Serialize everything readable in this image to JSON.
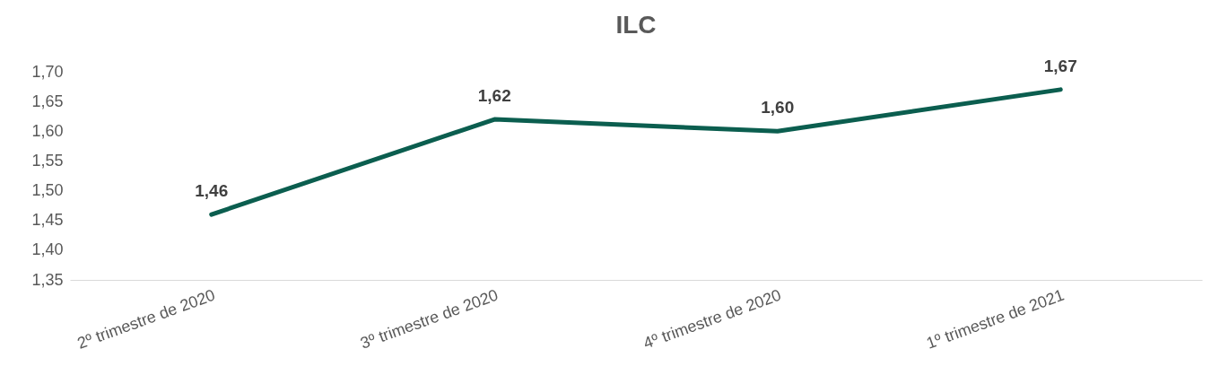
{
  "chart_data": {
    "type": "line",
    "title": "ILC",
    "categories": [
      "2º trimestre de 2020",
      "3º trimestre de 2020",
      "4º trimestre de 2020",
      "1º trimestre de 2021"
    ],
    "series": [
      {
        "color": "#0b5e4f",
        "values": [
          1.46,
          1.62,
          1.6,
          1.67
        ],
        "value_labels": [
          "1,46",
          "1,62",
          "1,60",
          "1,67"
        ]
      }
    ],
    "ylim": [
      1.35,
      1.7
    ],
    "yticks": [
      {
        "value": 1.35,
        "label": "1,35"
      },
      {
        "value": 1.4,
        "label": "1,40"
      },
      {
        "value": 1.45,
        "label": "1,45"
      },
      {
        "value": 1.5,
        "label": "1,50"
      },
      {
        "value": 1.55,
        "label": "1,55"
      },
      {
        "value": 1.6,
        "label": "1,60"
      },
      {
        "value": 1.65,
        "label": "1,65"
      },
      {
        "value": 1.7,
        "label": "1,70"
      }
    ],
    "grid": false,
    "legend": false,
    "marker": "none",
    "line_style": "solid"
  }
}
